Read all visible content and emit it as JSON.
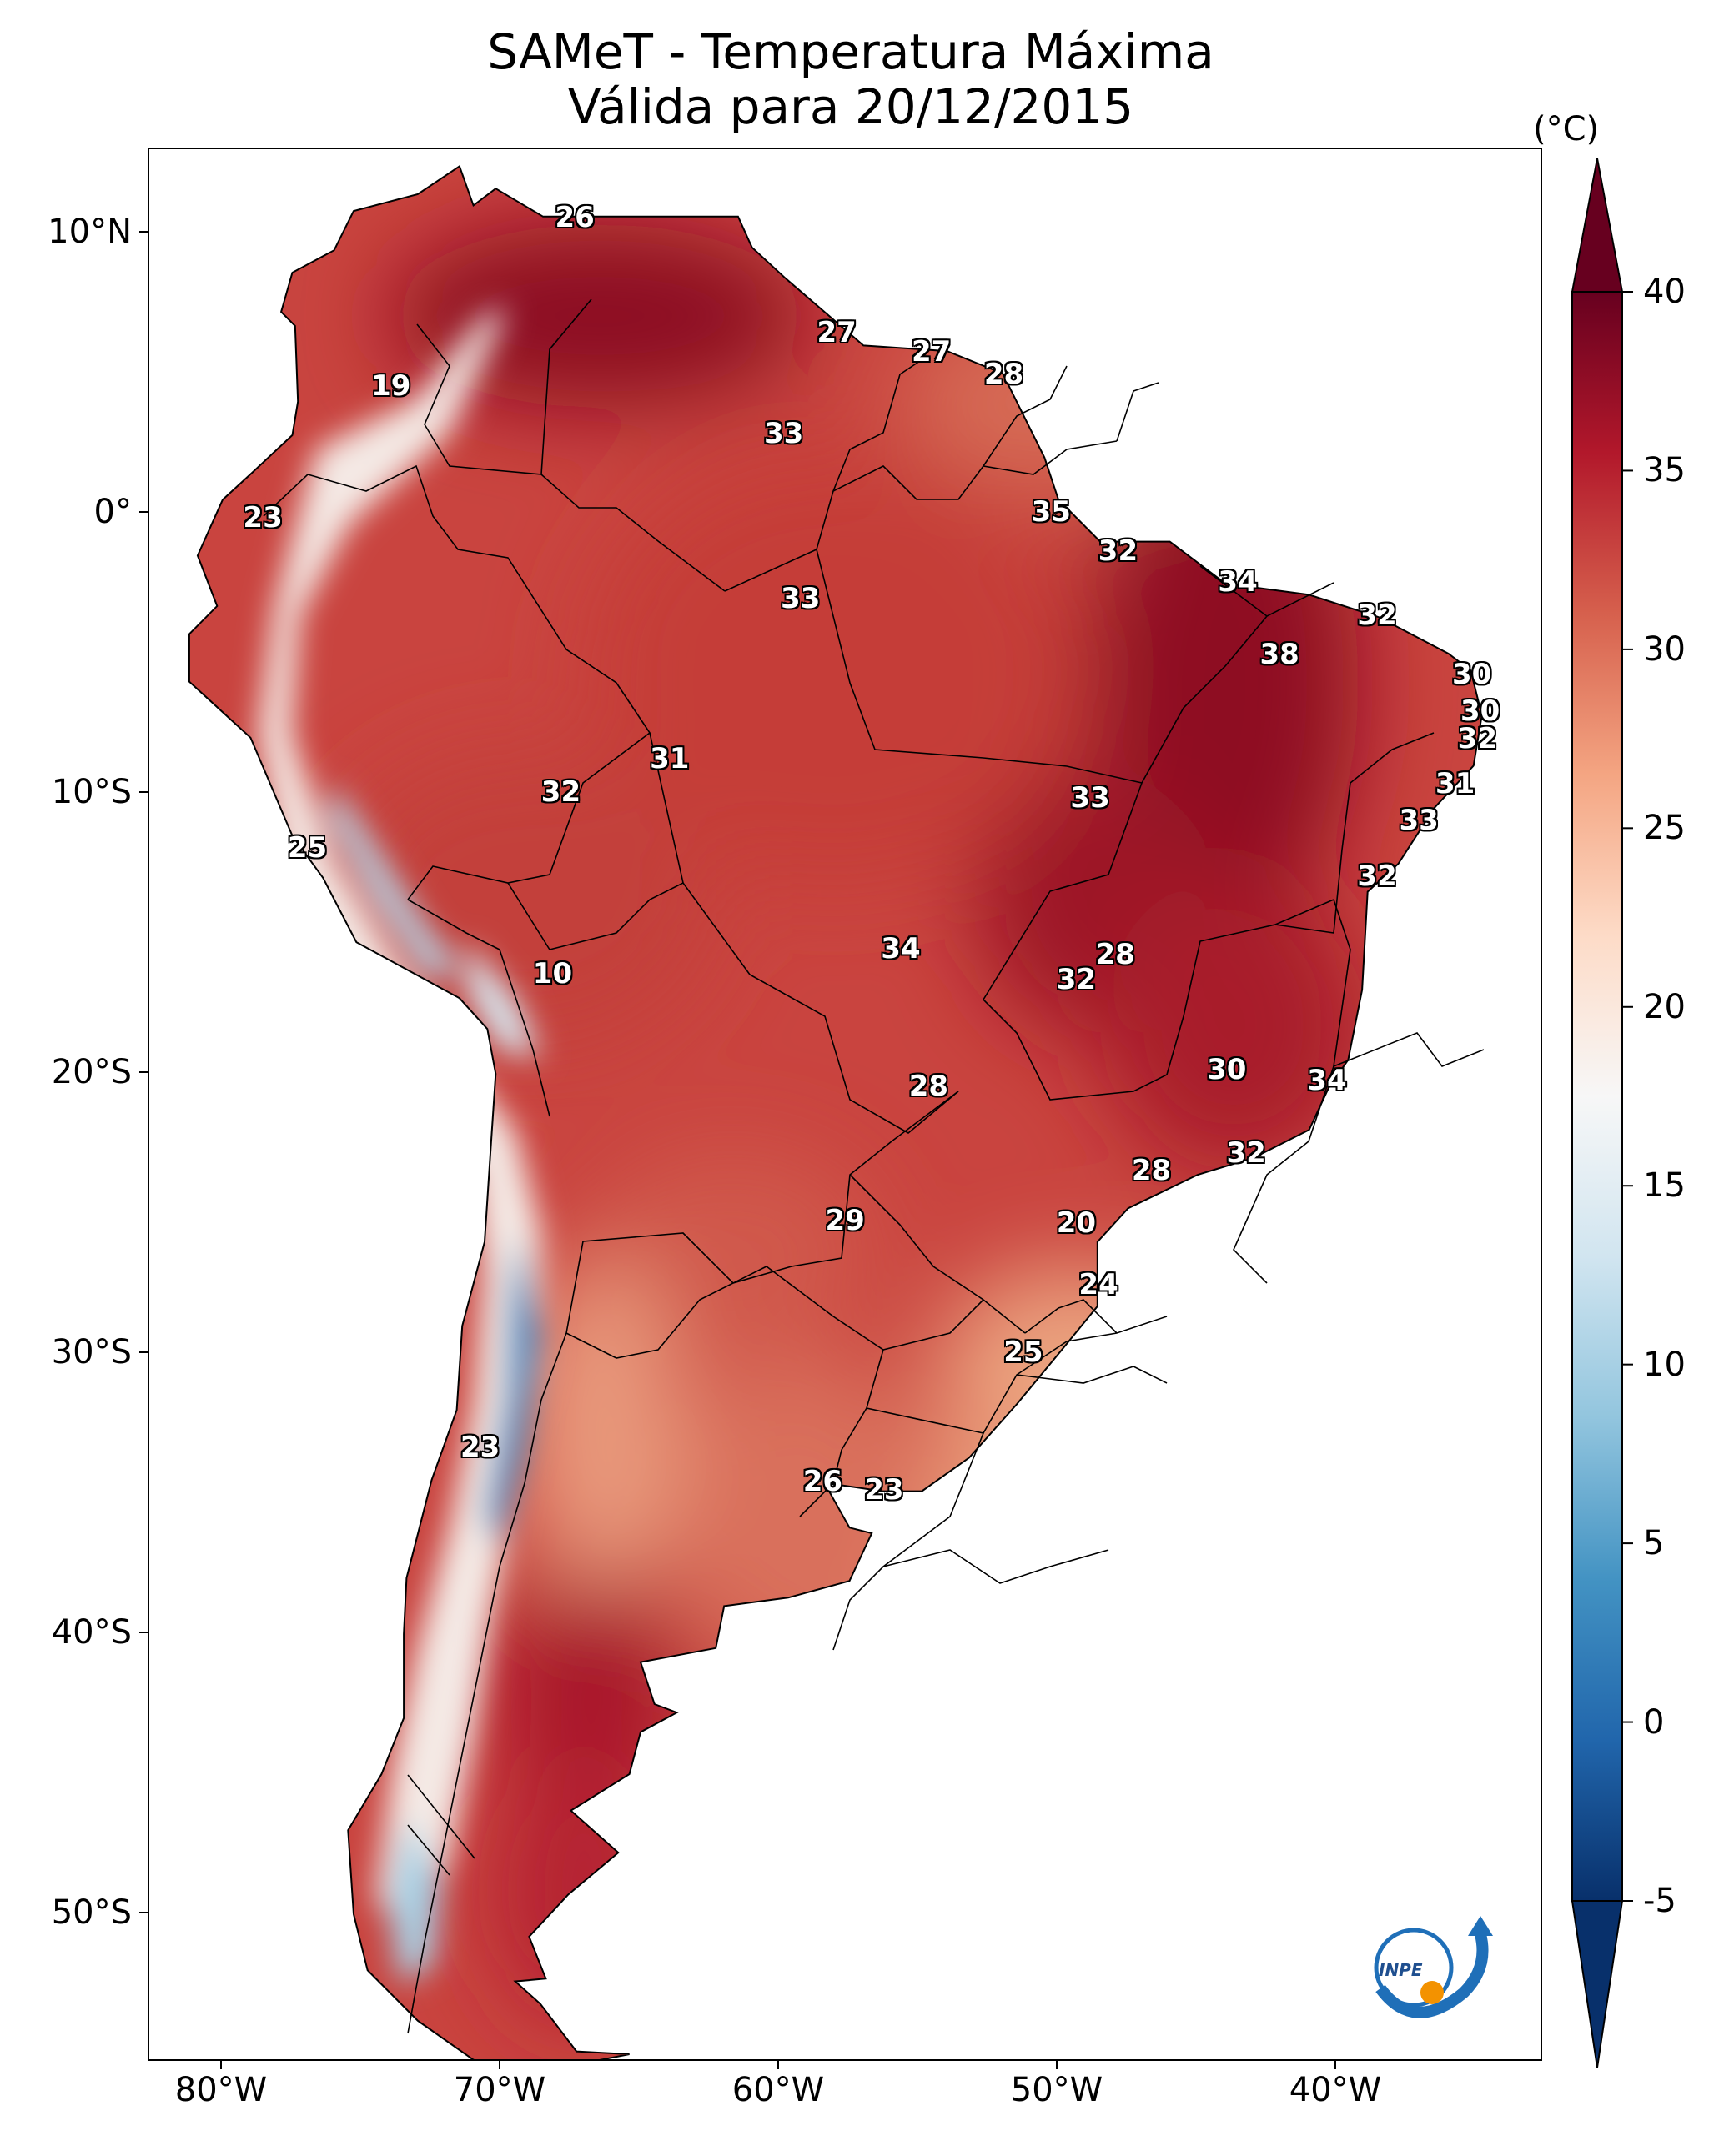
{
  "title_line1": "SAMeT - Temperatura Máxima",
  "title_line2": "Válida para 20/12/2015",
  "colorbar": {
    "unit": "(°C)",
    "ticks": [
      "40",
      "35",
      "30",
      "25",
      "20",
      "15",
      "10",
      "5",
      "0",
      "-5"
    ],
    "range": [
      -5,
      40
    ],
    "colors": [
      "#08306b",
      "#2166ac",
      "#4393c3",
      "#92c5de",
      "#d1e5f0",
      "#f7f7f7",
      "#fddbc7",
      "#f4a582",
      "#d6604d",
      "#b2182b",
      "#67001f"
    ]
  },
  "lon_ticks": [
    "80°W",
    "70°W",
    "60°W",
    "50°W",
    "40°W"
  ],
  "lat_ticks": [
    "10°N",
    "0°",
    "10°S",
    "20°S",
    "30°S",
    "40°S",
    "50°S"
  ],
  "station_values": [
    {
      "v": "26",
      "lon": -67.3,
      "lat": 10.5
    },
    {
      "v": "19",
      "lon": -73.9,
      "lat": 4.5
    },
    {
      "v": "27",
      "lon": -57.9,
      "lat": 6.4
    },
    {
      "v": "27",
      "lon": -54.5,
      "lat": 5.7
    },
    {
      "v": "28",
      "lon": -51.9,
      "lat": 4.9
    },
    {
      "v": "33",
      "lon": -59.8,
      "lat": 2.8
    },
    {
      "v": "23",
      "lon": -78.5,
      "lat": -0.2
    },
    {
      "v": "35",
      "lon": -50.2,
      "lat": 0.0
    },
    {
      "v": "32",
      "lon": -47.8,
      "lat": -1.4
    },
    {
      "v": "33",
      "lon": -59.2,
      "lat": -3.1
    },
    {
      "v": "34",
      "lon": -43.5,
      "lat": -2.5
    },
    {
      "v": "32",
      "lon": -38.5,
      "lat": -3.7
    },
    {
      "v": "38",
      "lon": -42.0,
      "lat": -5.1
    },
    {
      "v": "30",
      "lon": -35.1,
      "lat": -5.8
    },
    {
      "v": "30",
      "lon": -34.8,
      "lat": -7.1
    },
    {
      "v": "32",
      "lon": -34.9,
      "lat": -8.1
    },
    {
      "v": "31",
      "lon": -63.9,
      "lat": -8.8
    },
    {
      "v": "32",
      "lon": -67.8,
      "lat": -10.0
    },
    {
      "v": "31",
      "lon": -35.7,
      "lat": -9.7
    },
    {
      "v": "33",
      "lon": -48.8,
      "lat": -10.2
    },
    {
      "v": "33",
      "lon": -37.0,
      "lat": -11.0
    },
    {
      "v": "25",
      "lon": -76.9,
      "lat": -12.0
    },
    {
      "v": "32",
      "lon": -38.5,
      "lat": -13.0
    },
    {
      "v": "10",
      "lon": -68.1,
      "lat": -16.5
    },
    {
      "v": "34",
      "lon": -55.6,
      "lat": -15.6
    },
    {
      "v": "28",
      "lon": -47.9,
      "lat": -15.8
    },
    {
      "v": "32",
      "lon": -49.3,
      "lat": -16.7
    },
    {
      "v": "30",
      "lon": -43.9,
      "lat": -19.9
    },
    {
      "v": "34",
      "lon": -40.3,
      "lat": -20.3
    },
    {
      "v": "28",
      "lon": -54.6,
      "lat": -20.5
    },
    {
      "v": "32",
      "lon": -43.2,
      "lat": -22.9
    },
    {
      "v": "28",
      "lon": -46.6,
      "lat": -23.5
    },
    {
      "v": "29",
      "lon": -57.6,
      "lat": -25.3
    },
    {
      "v": "20",
      "lon": -49.3,
      "lat": -25.4
    },
    {
      "v": "24",
      "lon": -48.5,
      "lat": -27.6
    },
    {
      "v": "25",
      "lon": -51.2,
      "lat": -30.0
    },
    {
      "v": "23",
      "lon": -70.7,
      "lat": -33.4
    },
    {
      "v": "26",
      "lon": -58.4,
      "lat": -34.6
    },
    {
      "v": "23",
      "lon": -56.2,
      "lat": -34.9
    }
  ]
}
